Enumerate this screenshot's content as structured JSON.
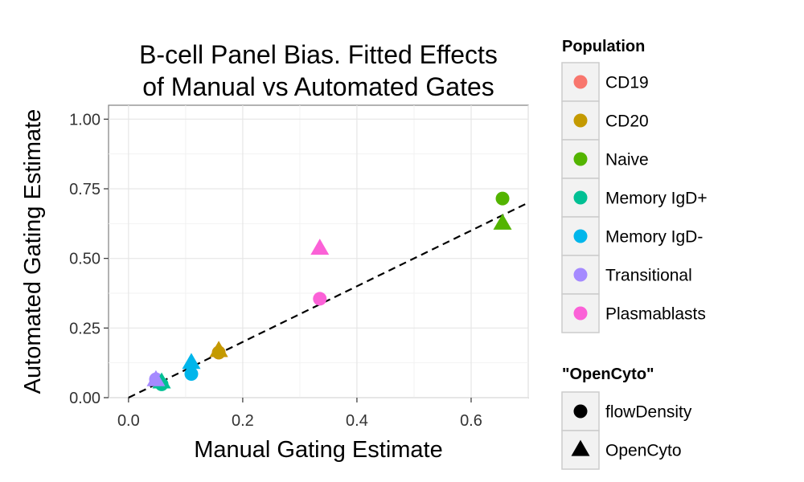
{
  "chart_data": {
    "type": "scatter",
    "title_lines": [
      "B-cell Panel Bias. Fitted Effects",
      "of Manual vs Automated Gates"
    ],
    "xlabel": "Manual Gating Estimate",
    "ylabel": "Automated Gating Estimate",
    "xlim": [
      -0.035,
      0.7
    ],
    "ylim": [
      0,
      1.05
    ],
    "x_ticks": [
      0.0,
      0.2,
      0.4,
      0.6
    ],
    "x_tick_labels": [
      "0.0",
      "0.2",
      "0.4",
      "0.6"
    ],
    "y_ticks": [
      0.0,
      0.25,
      0.5,
      0.75,
      1.0
    ],
    "y_tick_labels": [
      "0.00",
      "0.25",
      "0.50",
      "0.75",
      "1.00"
    ],
    "grid": true,
    "reference_line": {
      "type": "identity",
      "style": "dashed",
      "color": "#000000"
    },
    "legend_placement": "right",
    "color_legend": {
      "title": "Population",
      "entries": [
        {
          "label": "CD19",
          "color": "#F8766D"
        },
        {
          "label": "CD20",
          "color": "#C49A00"
        },
        {
          "label": "Naive",
          "color": "#53B400"
        },
        {
          "label": "Memory IgD+",
          "color": "#00C094"
        },
        {
          "label": "Memory IgD-",
          "color": "#00B6EB"
        },
        {
          "label": "Transitional",
          "color": "#A58AFF"
        },
        {
          "label": "Plasmablasts",
          "color": "#FB61D7"
        }
      ]
    },
    "shape_legend": {
      "title": "\"OpenCyto\"",
      "entries": [
        {
          "label": "flowDensity",
          "shape": "circle"
        },
        {
          "label": "OpenCyto",
          "shape": "triangle"
        }
      ]
    },
    "points": [
      {
        "population": "CD19",
        "method": "flowDensity",
        "x": 0.158,
        "y": 0.162
      },
      {
        "population": "CD20",
        "method": "flowDensity",
        "x": 0.158,
        "y": 0.162
      },
      {
        "population": "Naive",
        "method": "flowDensity",
        "x": 0.655,
        "y": 0.715
      },
      {
        "population": "Memory IgD+",
        "method": "flowDensity",
        "x": 0.058,
        "y": 0.048
      },
      {
        "population": "Memory IgD-",
        "method": "flowDensity",
        "x": 0.11,
        "y": 0.085
      },
      {
        "population": "Transitional",
        "method": "flowDensity",
        "x": 0.048,
        "y": 0.066
      },
      {
        "population": "Plasmablasts",
        "method": "flowDensity",
        "x": 0.335,
        "y": 0.355
      },
      {
        "population": "CD19",
        "method": "OpenCyto",
        "x": 0.158,
        "y": 0.168
      },
      {
        "population": "CD20",
        "method": "OpenCyto",
        "x": 0.158,
        "y": 0.168
      },
      {
        "population": "Naive",
        "method": "OpenCyto",
        "x": 0.655,
        "y": 0.625
      },
      {
        "population": "Memory IgD+",
        "method": "OpenCyto",
        "x": 0.058,
        "y": 0.055
      },
      {
        "population": "Memory IgD-",
        "method": "OpenCyto",
        "x": 0.11,
        "y": 0.125
      },
      {
        "population": "Transitional",
        "method": "OpenCyto",
        "x": 0.048,
        "y": 0.063
      },
      {
        "population": "Plasmablasts",
        "method": "OpenCyto",
        "x": 0.335,
        "y": 0.535
      }
    ]
  }
}
